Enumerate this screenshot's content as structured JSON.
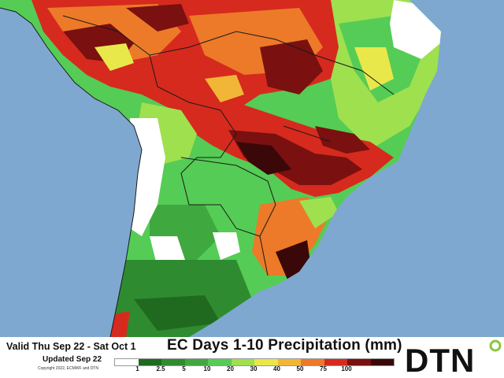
{
  "map": {
    "title": "EC Days 1-10 Precipitation (mm)",
    "valid_text": "Valid Thu Sep 22 - Sat Oct 1",
    "updated_text": "Updated Sep 22",
    "copyright": "Copyright 2022, ECMWF and DTN",
    "region": "South America",
    "colors": {
      "ocean": "#7fa8d0",
      "no_rain": "#ffffff",
      "border": "#1a1a1a"
    },
    "legend": {
      "colors": [
        "#ffffff",
        "#1f6a1f",
        "#2f8b2f",
        "#3fa83f",
        "#55cc55",
        "#9fe04f",
        "#e8e84a",
        "#f2b637",
        "#ec7a29",
        "#d62a1e",
        "#7a1010",
        "#3a0808"
      ],
      "ticks": [
        "1",
        "2.5",
        "5",
        "10",
        "20",
        "30",
        "40",
        "50",
        "75",
        "100"
      ]
    }
  },
  "brand": {
    "logo_text": "DTN",
    "colors": {
      "text": "#111111",
      "accent": "#8cc63f"
    }
  }
}
